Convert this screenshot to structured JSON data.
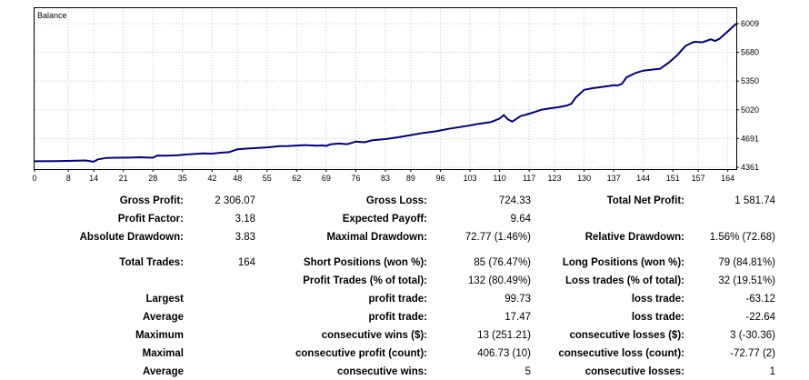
{
  "chart_data": {
    "type": "line",
    "title": "Balance",
    "x_ticks": [
      "0",
      "8",
      "14",
      "21",
      "28",
      "35",
      "42",
      "48",
      "55",
      "62",
      "69",
      "76",
      "83",
      "89",
      "96",
      "103",
      "110",
      "117",
      "123",
      "130",
      "137",
      "144",
      "151",
      "157",
      "164"
    ],
    "y_ticks": [
      "6009",
      "5680",
      "5350",
      "5020",
      "4691",
      "4361"
    ],
    "ylim": [
      4361,
      6009
    ],
    "xlim": [
      0,
      166
    ],
    "grid": true,
    "line_color": "#000080",
    "series": [
      {
        "x": [
          0,
          5,
          10,
          12,
          14,
          15,
          17,
          20,
          22,
          25,
          28,
          29,
          31,
          34,
          36,
          40,
          42,
          44,
          46,
          48,
          50,
          55,
          58,
          60,
          62,
          64,
          65,
          67,
          68,
          69,
          70,
          72,
          74,
          76,
          78,
          80,
          83,
          86,
          89,
          92,
          95,
          98,
          100,
          102,
          103,
          105,
          106,
          108,
          110,
          111,
          112,
          113,
          115,
          117,
          118,
          120,
          122,
          124,
          126,
          127,
          128,
          130,
          132,
          134,
          136,
          137,
          138,
          139,
          140,
          142,
          144,
          146,
          148,
          150,
          152,
          154,
          156,
          158,
          160,
          161,
          162,
          164,
          166
        ],
        "y": [
          4430,
          4431,
          4436,
          4439,
          4425,
          4452,
          4468,
          4470,
          4472,
          4476,
          4470,
          4496,
          4495,
          4500,
          4508,
          4520,
          4517,
          4528,
          4534,
          4568,
          4575,
          4589,
          4603,
          4605,
          4610,
          4615,
          4612,
          4608,
          4612,
          4606,
          4624,
          4633,
          4626,
          4655,
          4648,
          4672,
          4684,
          4705,
          4730,
          4755,
          4774,
          4802,
          4818,
          4834,
          4841,
          4860,
          4866,
          4880,
          4920,
          4960,
          4910,
          4885,
          4948,
          4975,
          4990,
          5022,
          5038,
          5050,
          5070,
          5090,
          5160,
          5250,
          5268,
          5282,
          5295,
          5302,
          5300,
          5320,
          5392,
          5440,
          5470,
          5481,
          5492,
          5560,
          5645,
          5755,
          5800,
          5795,
          5830,
          5810,
          5835,
          5920,
          6009
        ]
      }
    ]
  },
  "stats": {
    "gross_profit_label": "Gross Profit:",
    "gross_profit_value": "2 306.07",
    "gross_loss_label": "Gross Loss:",
    "gross_loss_value": "724.33",
    "total_net_profit_label": "Total Net Profit:",
    "total_net_profit_value": "1 581.74",
    "profit_factor_label": "Profit Factor:",
    "profit_factor_value": "3.18",
    "expected_payoff_label": "Expected Payoff:",
    "expected_payoff_value": "9.64",
    "absolute_drawdown_label": "Absolute Drawdown:",
    "absolute_drawdown_value": "3.83",
    "maximal_drawdown_label": "Maximal Drawdown:",
    "maximal_drawdown_value": "72.77 (1.46%)",
    "relative_drawdown_label": "Relative Drawdown:",
    "relative_drawdown_value": "1.56% (72.68)",
    "total_trades_label": "Total Trades:",
    "total_trades_value": "164",
    "short_positions_label": "Short Positions (won %):",
    "short_positions_value": "85 (76.47%)",
    "long_positions_label": "Long Positions (won %):",
    "long_positions_value": "79 (84.81%)",
    "profit_trades_label": "Profit Trades (% of total):",
    "profit_trades_value": "132 (80.49%)",
    "loss_trades_label": "Loss trades (% of total):",
    "loss_trades_value": "32 (19.51%)",
    "largest_label": "Largest",
    "largest_profit_label": "profit trade:",
    "largest_profit_value": "99.73",
    "largest_loss_label": "loss trade:",
    "largest_loss_value": "-63.12",
    "average_label": "Average",
    "average_profit_label": "profit trade:",
    "average_profit_value": "17.47",
    "average_loss_label": "loss trade:",
    "average_loss_value": "-22.64",
    "maximum_label": "Maximum",
    "max_consec_wins_label": "consecutive wins ($):",
    "max_consec_wins_value": "13 (251.21)",
    "max_consec_losses_label": "consecutive losses ($):",
    "max_consec_losses_value": "3 (-30.36)",
    "maximal_label": "Maximal",
    "maximal_consec_profit_label": "consecutive profit (count):",
    "maximal_consec_profit_value": "406.73 (10)",
    "maximal_consec_loss_label": "consecutive loss (count):",
    "maximal_consec_loss_value": "-72.77 (2)",
    "average2_label": "Average",
    "avg_consec_wins_label": "consecutive wins:",
    "avg_consec_wins_value": "5",
    "avg_consec_losses_label": "consecutive losses:",
    "avg_consec_losses_value": "1"
  }
}
